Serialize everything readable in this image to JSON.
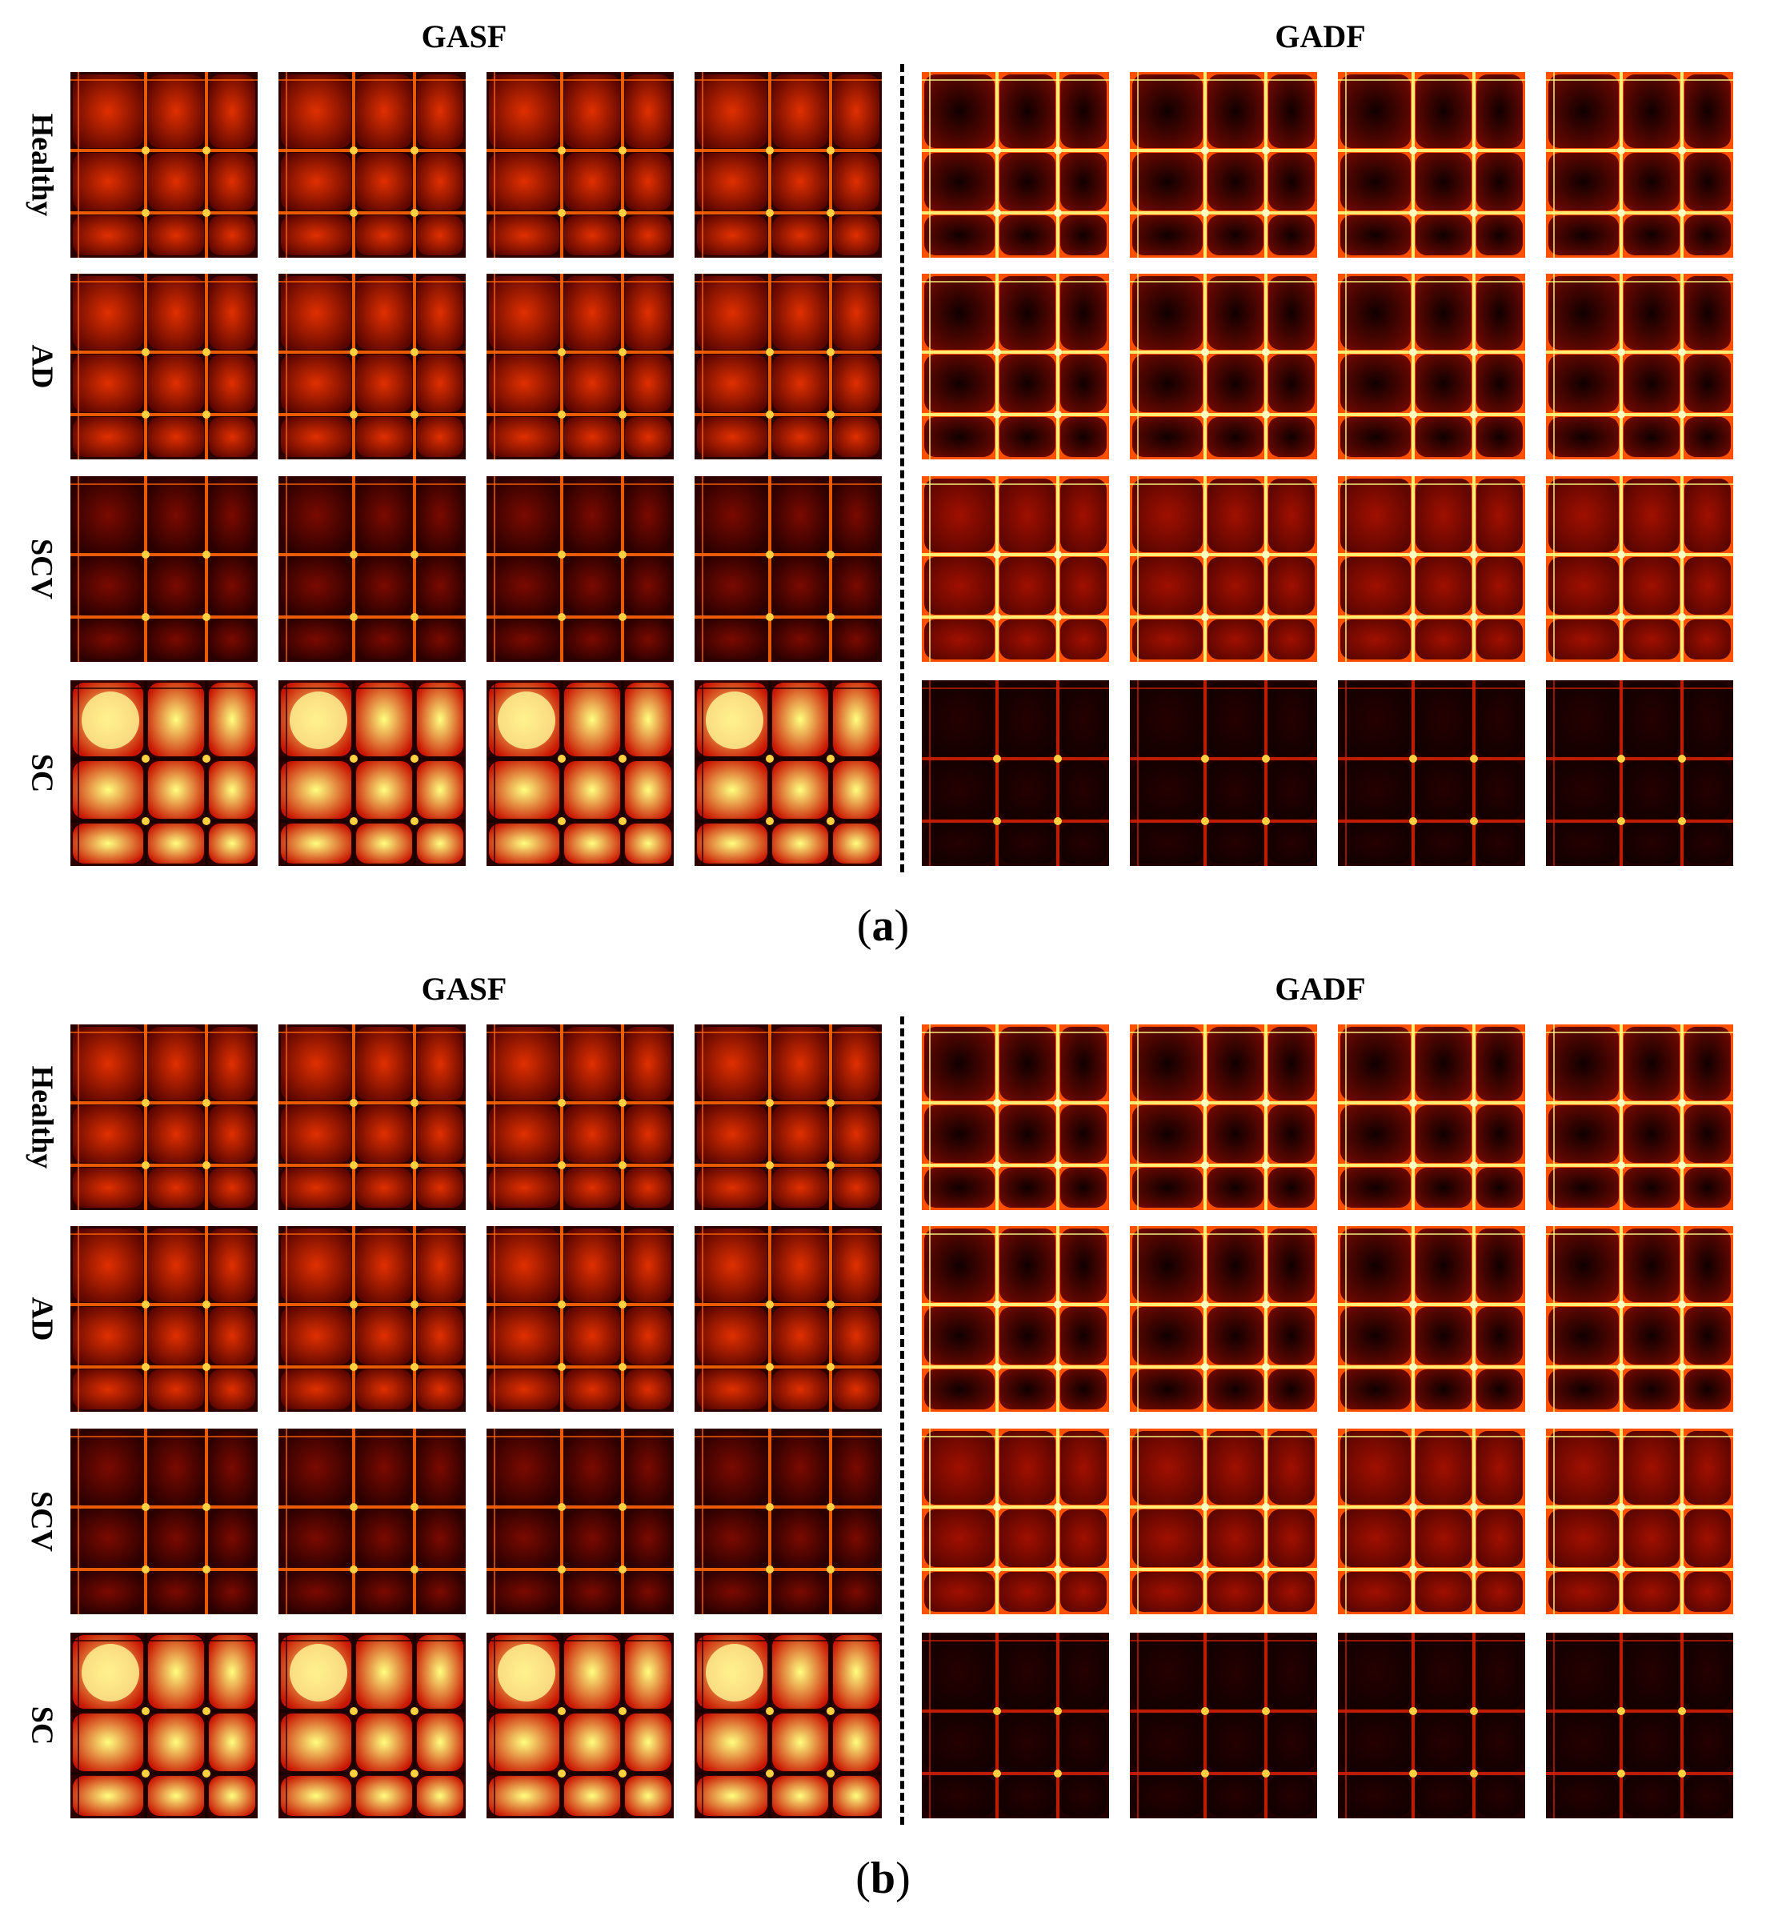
{
  "panels": [
    {
      "id": "a",
      "caption_open": "(",
      "caption_letter": "a",
      "caption_close": ")",
      "left_header": "GASF",
      "right_header": "GADF",
      "rows": [
        "Healthy",
        "AD",
        "SCV",
        "SC"
      ]
    },
    {
      "id": "b",
      "caption_open": "(",
      "caption_letter": "b",
      "caption_close": ")",
      "left_header": "GASF",
      "right_header": "GADF",
      "rows": [
        "Healthy",
        "AD",
        "SCV",
        "SC"
      ]
    }
  ],
  "colormap": "hot",
  "colors": {
    "dark": "#1a0000",
    "red": "#c81400",
    "orange": "#ff6400",
    "yellow": "#ffff80"
  }
}
